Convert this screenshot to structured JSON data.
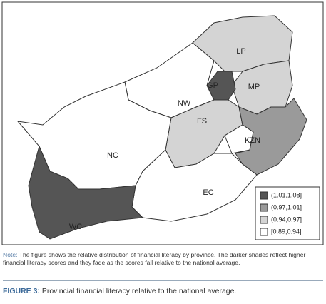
{
  "map": {
    "provinces": [
      {
        "label": "LP",
        "shade": 2
      },
      {
        "label": "MP",
        "shade": 2
      },
      {
        "label": "GP",
        "shade": 0
      },
      {
        "label": "NW",
        "shade": 3
      },
      {
        "label": "FS",
        "shade": 2
      },
      {
        "label": "KZN",
        "shade": 1
      },
      {
        "label": "NC",
        "shade": 3
      },
      {
        "label": "EC",
        "shade": 3
      },
      {
        "label": "WC",
        "shade": 0
      }
    ],
    "legend": [
      {
        "label": "(1.01,1.08]",
        "color": "#555555"
      },
      {
        "label": "(0.97,1.01]",
        "color": "#9a9a9a"
      },
      {
        "label": "(0.94,0.97]",
        "color": "#d4d4d4"
      },
      {
        "label": "[0.89,0.94]",
        "color": "#ffffff"
      }
    ]
  },
  "note": {
    "prefix": "Note:",
    "text": "The figure shows the relative distribution of financial literacy by province. The darker shades reflect higher financial literacy scores and they fade as the scores fall relative to the national average."
  },
  "caption": {
    "prefix": "FIGURE 3:",
    "text": "Provincial financial literacy relative to the national average."
  }
}
